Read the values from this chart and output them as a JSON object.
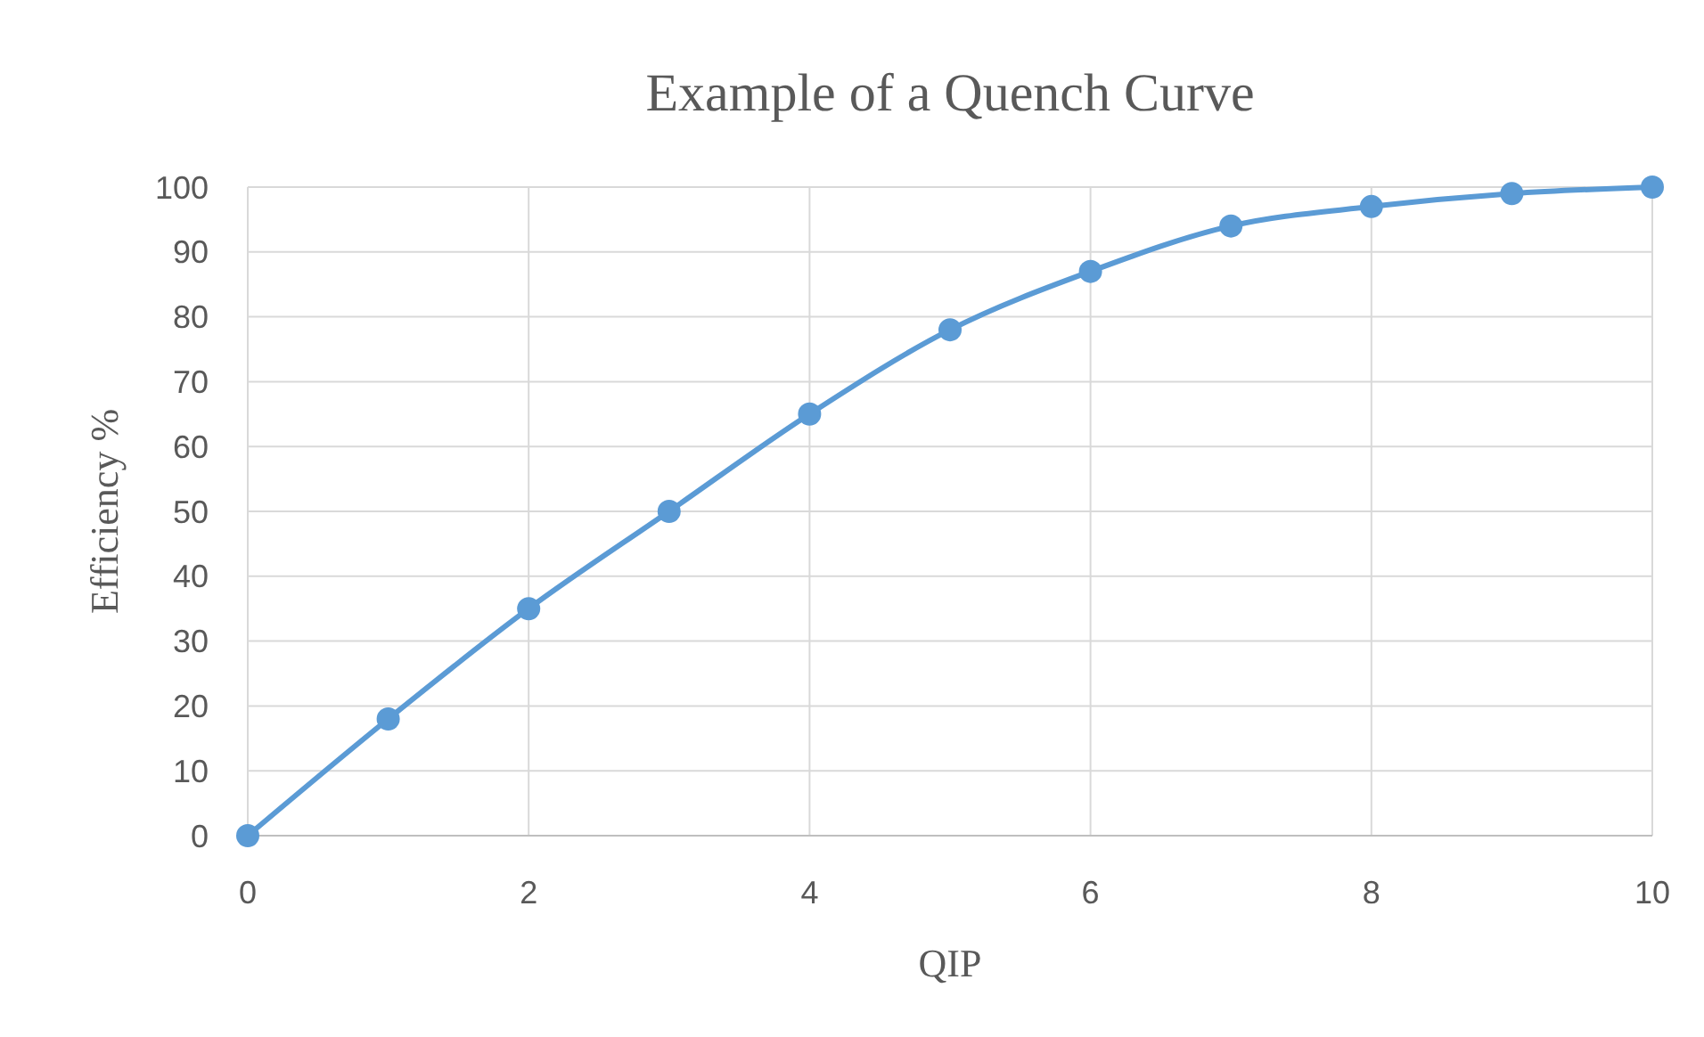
{
  "chart_data": {
    "type": "line",
    "title": "Example of a Quench Curve",
    "xlabel": "QIP",
    "ylabel": "Efficiency %",
    "x": [
      0,
      1,
      2,
      3,
      4,
      5,
      6,
      7,
      8,
      9,
      10
    ],
    "series": [
      {
        "color": "#5b9bd5",
        "values": [
          0,
          18,
          35,
          50,
          65,
          78,
          87,
          94,
          97,
          99,
          100
        ]
      }
    ],
    "xlim": [
      0,
      10
    ],
    "xticks": [
      0,
      2,
      4,
      6,
      8,
      10
    ],
    "ylim": [
      0,
      100
    ],
    "yticks": [
      0,
      10,
      20,
      30,
      40,
      50,
      60,
      70,
      80,
      90,
      100
    ],
    "grid": true,
    "marker": "circle",
    "line_style": "solid"
  }
}
